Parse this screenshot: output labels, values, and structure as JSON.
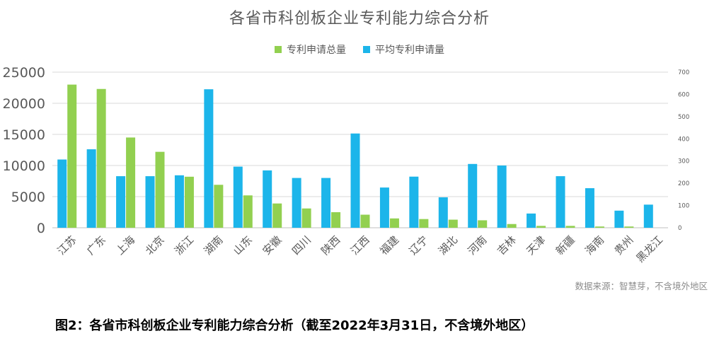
{
  "caption": "图2：各省市科创板企业专利能力综合分析（截至2022年3月31日，不含境外地区）",
  "source_note": "数据来源：智慧芽，不含境外地区",
  "colors": {
    "total": "#92D050",
    "average": "#1CB5EA",
    "text": "#595959",
    "grid": "#D9D9D9"
  },
  "chart_data": {
    "type": "bar",
    "title": "各省市科创板企业专利能力综合分析",
    "legend_position": "top",
    "grid": true,
    "categories": [
      "江苏",
      "广东",
      "上海",
      "北京",
      "浙江",
      "湖南",
      "山东",
      "安徽",
      "四川",
      "陕西",
      "江西",
      "福建",
      "辽宁",
      "湖北",
      "河南",
      "吉林",
      "天津",
      "新疆",
      "海南",
      "贵州",
      "黑龙江"
    ],
    "series": [
      {
        "name": "平均专利申请量",
        "axis": "right",
        "color": "#1CB5EA",
        "values": [
          307,
          353,
          232,
          232,
          236,
          623,
          275,
          258,
          224,
          224,
          424,
          181,
          230,
          137,
          287,
          280,
          64,
          232,
          178,
          77,
          104
        ]
      },
      {
        "name": "专利申请总量",
        "axis": "left",
        "color": "#92D050",
        "values": [
          23000,
          22300,
          14500,
          12200,
          8200,
          6900,
          5200,
          3900,
          3100,
          2500,
          2100,
          1500,
          1400,
          1300,
          1200,
          600,
          300,
          300,
          200,
          200,
          0
        ]
      }
    ],
    "y_left": {
      "min": 0,
      "max": 25000,
      "ticks": [
        0,
        5000,
        10000,
        15000,
        20000,
        25000
      ]
    },
    "y_right": {
      "min": 0,
      "max": 700,
      "ticks": [
        0,
        100,
        200,
        300,
        400,
        500,
        600,
        700
      ]
    }
  }
}
